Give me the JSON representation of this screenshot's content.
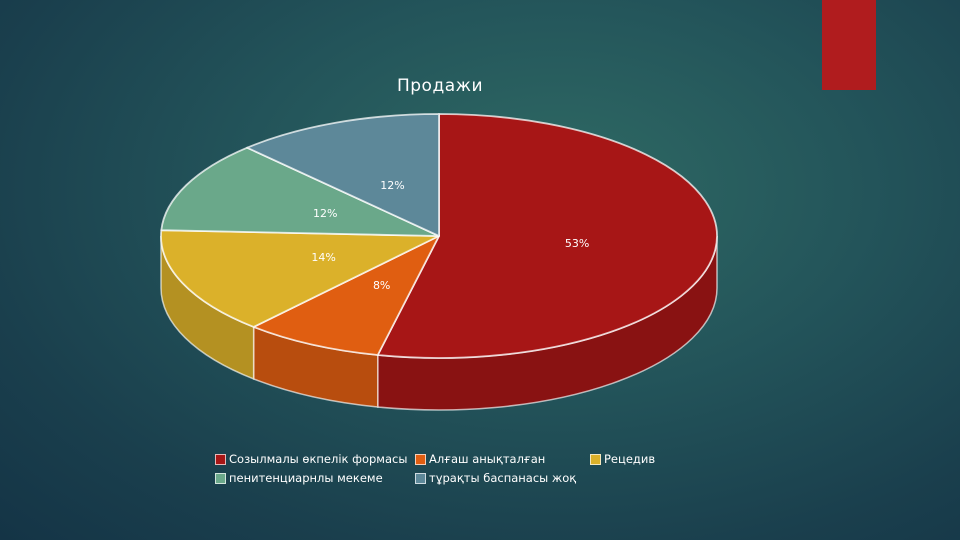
{
  "accent_color": "#b01c1e",
  "chart_data": {
    "type": "pie",
    "title": "Продажи",
    "categories": [
      "Созылмалы өкпелік формасы",
      "Алғаш анықталған",
      "Рецедив",
      "пенитенциарнлы мекеме",
      "тұрақты баспанасы жоқ"
    ],
    "values": [
      53,
      8,
      14,
      12,
      12
    ],
    "labels": [
      "53%",
      "8%",
      "14%",
      "12%",
      "12%"
    ],
    "colors": [
      "#a71616",
      "#e05e11",
      "#dbb12a",
      "#6aa88a",
      "#5d8899"
    ],
    "legend_position": "bottom"
  }
}
